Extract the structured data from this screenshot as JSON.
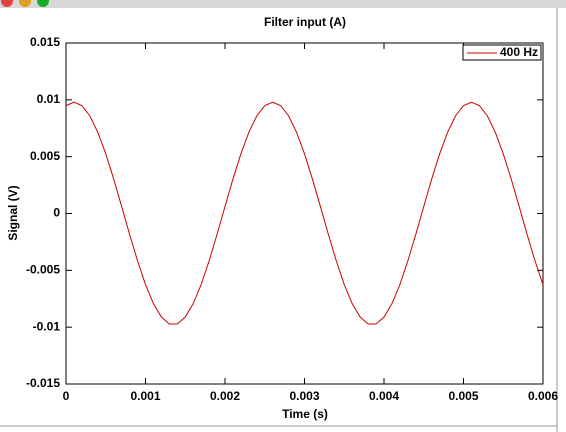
{
  "chart_data": {
    "type": "line",
    "title": "Filter input (A)",
    "x_label": "Time (s)",
    "y_label": "Signal (V)",
    "x": [
      0,
      0.0001,
      0.0002,
      0.0003,
      0.0004,
      0.0005,
      0.0006,
      0.0007,
      0.0008,
      0.0009,
      0.001,
      0.0011,
      0.0012,
      0.0013,
      0.0014,
      0.0015,
      0.0016,
      0.0017,
      0.0018,
      0.0019,
      0.002,
      0.0021,
      0.0022,
      0.0023,
      0.0024,
      0.0025,
      0.0026,
      0.0027,
      0.0028,
      0.0029,
      0.003,
      0.0031,
      0.0032,
      0.0033,
      0.0034,
      0.0035,
      0.0036,
      0.0037,
      0.0038,
      0.0039,
      0.004,
      0.0041,
      0.0042,
      0.0043,
      0.0044,
      0.0045,
      0.0046,
      0.0047,
      0.0048,
      0.0049,
      0.005,
      0.0051,
      0.0052,
      0.0053,
      0.0054,
      0.0055,
      0.0056,
      0.0057,
      0.0058,
      0.0059,
      0.006
    ],
    "series": [
      {
        "name": "400 Hz",
        "color": "#cc0000",
        "values": [
          0.00949,
          0.0098,
          0.00949,
          0.00859,
          0.00714,
          0.00525,
          0.00303,
          0.00062,
          -0.00184,
          -0.00417,
          -0.00625,
          -0.00793,
          -0.00911,
          -0.00972,
          -0.00972,
          -0.00911,
          -0.00793,
          -0.00625,
          -0.00417,
          -0.00184,
          0.00062,
          0.00303,
          0.00525,
          0.00714,
          0.00859,
          0.00949,
          0.0098,
          0.00949,
          0.00859,
          0.00714,
          0.00525,
          0.00303,
          0.00062,
          -0.00184,
          -0.00417,
          -0.00625,
          -0.00793,
          -0.00911,
          -0.00972,
          -0.00972,
          -0.00911,
          -0.00793,
          -0.00625,
          -0.00417,
          -0.00184,
          0.00062,
          0.00303,
          0.00525,
          0.00714,
          0.00859,
          0.00949,
          0.0098,
          0.00949,
          0.00859,
          0.00714,
          0.00525,
          0.00303,
          0.00062,
          -0.00184,
          -0.00417,
          -0.00625
        ]
      }
    ],
    "xlim": [
      0,
      0.006
    ],
    "xticks": [
      0,
      0.001,
      0.002,
      0.003,
      0.004,
      0.005,
      0.006
    ],
    "ylim": [
      -0.015,
      0.015
    ],
    "yticks": [
      -0.015,
      -0.01,
      -0.005,
      0,
      0.005,
      0.01,
      0.015
    ],
    "grid": false,
    "legend": "top-right"
  }
}
